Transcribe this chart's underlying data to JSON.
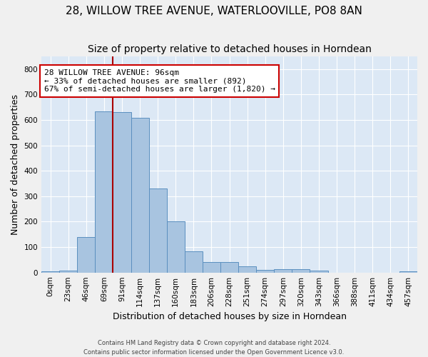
{
  "title_line1": "28, WILLOW TREE AVENUE, WATERLOOVILLE, PO8 8AN",
  "title_line2": "Size of property relative to detached houses in Horndean",
  "xlabel": "Distribution of detached houses by size in Horndean",
  "ylabel": "Number of detached properties",
  "footer_line1": "Contains HM Land Registry data © Crown copyright and database right 2024.",
  "footer_line2": "Contains public sector information licensed under the Open Government Licence v3.0.",
  "bin_labels": [
    "0sqm",
    "23sqm",
    "46sqm",
    "69sqm",
    "91sqm",
    "114sqm",
    "137sqm",
    "160sqm",
    "183sqm",
    "206sqm",
    "228sqm",
    "251sqm",
    "274sqm",
    "297sqm",
    "320sqm",
    "343sqm",
    "366sqm",
    "388sqm",
    "411sqm",
    "434sqm",
    "457sqm"
  ],
  "bar_heights": [
    5,
    8,
    140,
    635,
    630,
    610,
    330,
    200,
    83,
    40,
    40,
    25,
    10,
    12,
    12,
    8,
    0,
    0,
    0,
    0,
    5
  ],
  "bar_color": "#a8c4e0",
  "bar_edge_color": "#5a8fbf",
  "background_color": "#dce8f5",
  "grid_color": "#ffffff",
  "ylim": [
    0,
    850
  ],
  "yticks": [
    0,
    100,
    200,
    300,
    400,
    500,
    600,
    700,
    800
  ],
  "vline_bin_index": 4,
  "vline_color": "#aa0000",
  "annotation_text": "28 WILLOW TREE AVENUE: 96sqm\n← 33% of detached houses are smaller (892)\n67% of semi-detached houses are larger (1,820) →",
  "annotation_box_color": "#ffffff",
  "annotation_border_color": "#cc0000",
  "title_fontsize": 11,
  "subtitle_fontsize": 10,
  "tick_fontsize": 7.5,
  "ylabel_fontsize": 9,
  "xlabel_fontsize": 9,
  "annot_fontsize": 8
}
